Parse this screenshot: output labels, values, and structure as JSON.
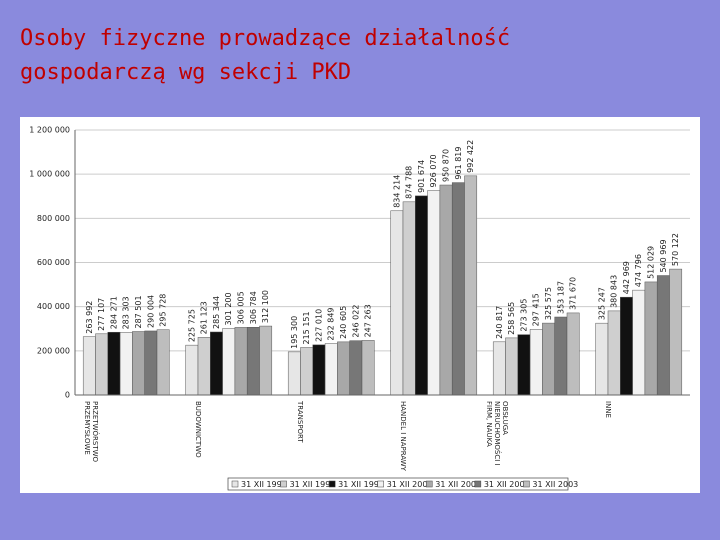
{
  "chart_data": {
    "type": "bar",
    "title": [
      "Osoby fizyczne prowadzące działalność",
      "gospodarczą wg sekcji PKD"
    ],
    "categories": [
      "PRZETWÓRSTWO PRZEMYSŁOWE",
      "BUDOWNICTWO",
      "TRANSPORT",
      "HANDEL I NAPRAWY",
      "OBSŁUGA NIERUCHOMOŚCI I FIRM, NAUKA",
      "INNE"
    ],
    "series": [
      {
        "name": "31 XII 1997",
        "color": "#e6e6e6",
        "values": [
          263992,
          225725,
          195300,
          834214,
          240817,
          325247
        ],
        "value_labels": [
          "263 992",
          "225 725",
          "195 300",
          "834 214",
          "240 817",
          "325 247"
        ]
      },
      {
        "name": "31 XII 1998",
        "color": "#cfcfcf",
        "values": [
          277107,
          261123,
          215151,
          874788,
          258565,
          380843
        ],
        "value_labels": [
          "277 107",
          "261 123",
          "215 151",
          "874 788",
          "258 565",
          "380 843"
        ]
      },
      {
        "name": "31 XII 1999",
        "color": "#111111",
        "values": [
          284271,
          285344,
          227010,
          901674,
          273305,
          442969
        ],
        "value_labels": [
          "284 271",
          "285 344",
          "227 010",
          "901 674",
          "273 305",
          "442 969"
        ]
      },
      {
        "name": "31 XII 2000",
        "color": "#f2f2f2",
        "values": [
          283303,
          301200,
          232849,
          926070,
          297415,
          474796
        ],
        "value_labels": [
          "283 303",
          "301 200",
          "232 849",
          "926 070",
          "297 415",
          "474 796"
        ]
      },
      {
        "name": "31 XII 2001",
        "color": "#a8a8a8",
        "values": [
          287501,
          306005,
          240605,
          950870,
          325575,
          512029
        ],
        "value_labels": [
          "287 501",
          "306 005",
          "240 605",
          "950 870",
          "325 575",
          "512 029"
        ]
      },
      {
        "name": "31 XII 2002",
        "color": "#777777",
        "values": [
          290004,
          306784,
          246022,
          961819,
          353187,
          540969
        ],
        "value_labels": [
          "290 004",
          "306 784",
          "246 022",
          "961 819",
          "353 187",
          "540 969"
        ]
      },
      {
        "name": "31 XII 2003",
        "color": "#bdbdbd",
        "values": [
          295728,
          312100,
          247263,
          992422,
          371670,
          570122
        ],
        "value_labels": [
          "295 728",
          "312 100",
          "247 263",
          "992 422",
          "371 670",
          "570 122"
        ]
      }
    ],
    "ylim": [
      0,
      1200000
    ],
    "yticks": [
      0,
      {
        "value": 200000,
        "label": "200 000"
      },
      {
        "value": 400000,
        "label": "400 000"
      },
      {
        "value": 600000,
        "label": "600 000"
      },
      {
        "value": 800000,
        "label": "800 000"
      },
      {
        "value": 1000000,
        "label": "1 000 000"
      },
      {
        "value": 1200000,
        "label": "1 200 000"
      }
    ],
    "grid": true,
    "legend": "bottom"
  }
}
